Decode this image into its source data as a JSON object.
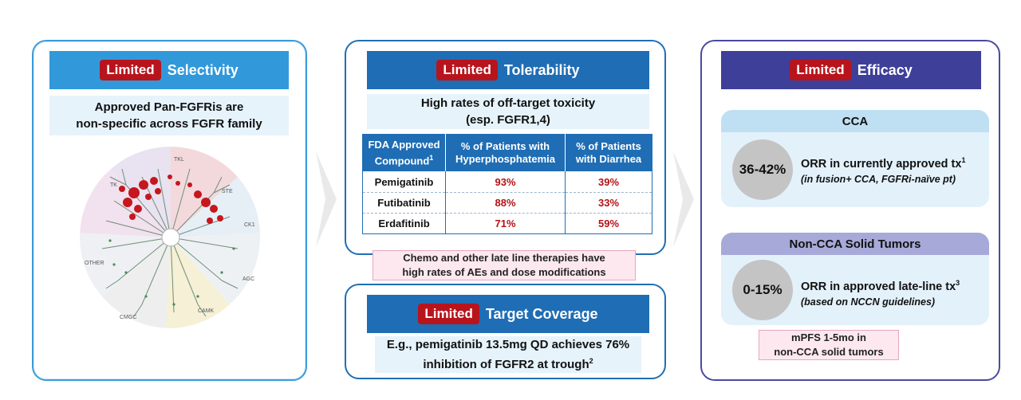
{
  "tag": "Limited",
  "selectivity": {
    "title": "Selectivity",
    "subtitle_line1": "Approved Pan-FGFRis are",
    "subtitle_line2": "non-specific across FGFR family",
    "wheel_labels": [
      "TKL",
      "TK",
      "STE",
      "CK1",
      "AGC",
      "OTHER",
      "CMGC",
      "CAMK"
    ]
  },
  "tolerability": {
    "title": "Tolerability",
    "subtitle_line1": "High rates of off-target toxicity",
    "subtitle_line2": "(esp. FGFR1,4)",
    "columns": [
      {
        "line1": "FDA Approved",
        "line2": "Compound",
        "sup": "1"
      },
      {
        "line1": "% of Patients with",
        "line2": "Hyperphosphatemia",
        "sup": ""
      },
      {
        "line1": "% of Patients",
        "line2": "with Diarrhea",
        "sup": ""
      }
    ],
    "rows": [
      {
        "drug": "Pemigatinib",
        "hyper": "93%",
        "diarrhea": "39%"
      },
      {
        "drug": "Futibatinib",
        "hyper": "88%",
        "diarrhea": "33%"
      },
      {
        "drug": "Erdafitinib",
        "hyper": "71%",
        "diarrhea": "59%"
      }
    ],
    "note_line1": "Chemo and other late line therapies have",
    "note_line2": "high rates of AEs and dose modifications"
  },
  "coverage": {
    "title": "Target Coverage",
    "line1": "E.g., pemigatinib 13.5mg QD achieves 76%",
    "line2": "inhibition of FGFR2 at trough",
    "sup": "2"
  },
  "efficacy": {
    "title": "Efficacy",
    "cca": {
      "heading": "CCA",
      "value": "36-42%",
      "main": "ORR in currently approved tx",
      "sup": "1",
      "sub": "(in fusion+ CCA, FGFRi-naïve pt)"
    },
    "non_cca": {
      "heading": "Non-CCA Solid Tumors",
      "value": "0-15%",
      "main": "ORR in approved late-line tx",
      "sup": "3",
      "sub": "(based on NCCN guidelines)"
    },
    "note_line1": "mPFS 1-5mo in",
    "note_line2": "non-CCA solid tumors"
  },
  "colors": {
    "tag_red": "#b8141c",
    "selectivity_blue": "#3199da",
    "tolerability_blue": "#1f6db4",
    "efficacy_indigo": "#3d3f99",
    "value_red": "#b31217"
  }
}
